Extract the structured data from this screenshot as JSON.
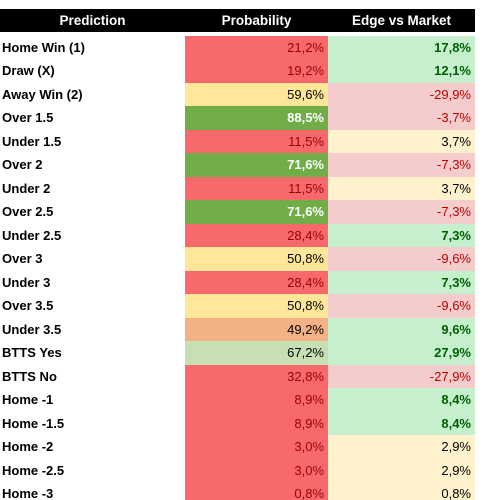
{
  "table": {
    "header": [
      "Prediction",
      "Probability",
      "Edge vs Market"
    ],
    "rows": [
      [
        "Home Win (1)",
        "21,2%",
        "17,8%"
      ],
      [
        "Draw (X)",
        "19,2%",
        "12,1%"
      ],
      [
        "Away Win (2)",
        "59,6%",
        "-29,9%"
      ],
      [
        "Over 1.5",
        "88,5%",
        "-3,7%"
      ],
      [
        "Under 1.5",
        "11,5%",
        "3,7%"
      ],
      [
        "Over 2",
        "71,6%",
        "-7,3%"
      ],
      [
        "Under 2",
        "11,5%",
        "3,7%"
      ],
      [
        "Over 2.5",
        "71,6%",
        "-7,3%"
      ],
      [
        "Under 2.5",
        "28,4%",
        "7,3%"
      ],
      [
        "Over 3",
        "50,8%",
        "-9,6%"
      ],
      [
        "Under 3",
        "28,4%",
        "7,3%"
      ],
      [
        "Over 3.5",
        "50,8%",
        "-9,6%"
      ],
      [
        "Under 3.5",
        "49,2%",
        "9,6%"
      ],
      [
        "BTTS Yes",
        "67,2%",
        "27,9%"
      ],
      [
        "BTTS No",
        "32,8%",
        "-27,9%"
      ],
      [
        "Home -1",
        "8,9%",
        "8,4%"
      ],
      [
        "Home -1.5",
        "8,9%",
        "8,4%"
      ],
      [
        "Home -2",
        "3,0%",
        "2,9%"
      ],
      [
        "Home -2.5",
        "3,0%",
        "2,9%"
      ],
      [
        "Home -3",
        "0,8%",
        "0,8%"
      ]
    ]
  }
}
